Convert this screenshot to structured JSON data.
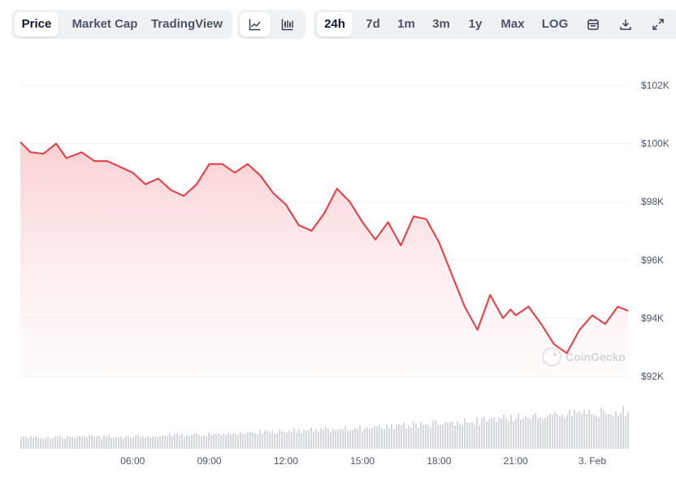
{
  "toolbar": {
    "view_tabs": [
      "Price",
      "Market Cap",
      "TradingView"
    ],
    "active_view": "Price",
    "range_tabs": [
      "24h",
      "7d",
      "1m",
      "3m",
      "1y",
      "Max",
      "LOG"
    ],
    "active_range": "24h",
    "icons": [
      "line-chart-icon",
      "candlestick-chart-icon",
      "calendar-icon",
      "download-icon",
      "expand-icon"
    ]
  },
  "watermark": "CoinGecko",
  "colors": {
    "line": "#ea3943",
    "fill_top": "#fbd0d2",
    "grid": "#eef0f3",
    "volume": "#d4d8de",
    "text": "#4b5563"
  },
  "chart_data": {
    "type": "area",
    "x_ticks": [
      "06:00",
      "09:00",
      "12:00",
      "15:00",
      "18:00",
      "21:00",
      "3. Feb"
    ],
    "y_ticks": [
      "$102K",
      "$100K",
      "$98K",
      "$96K",
      "$94K",
      "$92K"
    ],
    "y_tick_values": [
      102000,
      100000,
      98000,
      96000,
      94000,
      92000
    ],
    "ylim": [
      92000,
      102000
    ],
    "x_hours_range": [
      1.6,
      25.4
    ],
    "series": [
      {
        "x": [
          1.6,
          2.0,
          2.5,
          3.0,
          3.4,
          4.0,
          4.5,
          5.0,
          5.5,
          6.0,
          6.5,
          7.0,
          7.5,
          8.0,
          8.5,
          9.0,
          9.5,
          10.0,
          10.5,
          11.0,
          11.5,
          12.0,
          12.5,
          13.0,
          13.5,
          14.0,
          14.5,
          15.0,
          15.5,
          16.0,
          16.5,
          17.0,
          17.5,
          18.0,
          18.5,
          19.0,
          19.5,
          20.0,
          20.5,
          20.8,
          21.0,
          21.5,
          22.0,
          22.5,
          23.0,
          23.5,
          24.0,
          24.5,
          25.0,
          25.4
        ],
        "values": [
          100050,
          99700,
          99650,
          100000,
          99500,
          99700,
          99400,
          99400,
          99200,
          99000,
          98600,
          98800,
          98400,
          98200,
          98600,
          99300,
          99300,
          99000,
          99300,
          98900,
          98300,
          97900,
          97200,
          97000,
          97600,
          98450,
          98000,
          97300,
          96700,
          97300,
          96500,
          97500,
          97400,
          96600,
          95500,
          94400,
          93600,
          94800,
          94000,
          94300,
          94100,
          94400,
          93800,
          93100,
          92800,
          93600,
          94100,
          93800,
          94400,
          94250
        ]
      }
    ],
    "volume": {
      "relative_levels": [
        0.3,
        0.32,
        0.35,
        0.4,
        0.48,
        0.55,
        0.65,
        0.78,
        0.92,
        1.0
      ]
    },
    "grid": true,
    "legend": "none"
  }
}
